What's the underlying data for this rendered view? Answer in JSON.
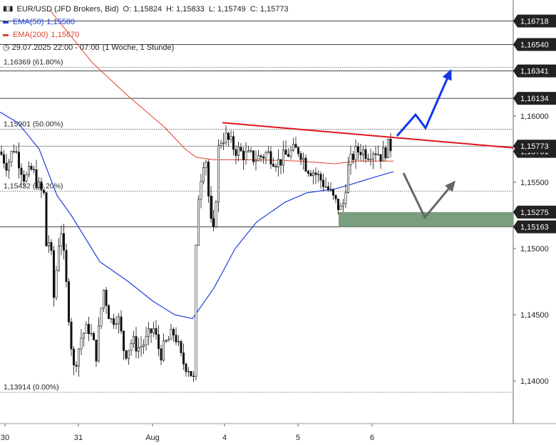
{
  "header": {
    "symbol": "EUR/USD (JFD Brokers, Bid)",
    "open": "O: 1,15824",
    "high": "H: 1,15833",
    "low": "L: 1,15749",
    "close": "C: 1,15773",
    "ema50_label": "EMA(50)",
    "ema50_value": "1,15580",
    "ema200_label": "EMA(200)",
    "ema200_value": "1,15670",
    "range": "29.07.2025 22:00 - 07:00",
    "period": "(1 Woche, 1 Stunde)"
  },
  "colors": {
    "ema50": "#1f3fe0",
    "ema200": "#e0402a",
    "trendline": "#e0161c",
    "bull_arrow": "#1336e8",
    "bear_arrow": "#666666",
    "zone": "#7a9e7e",
    "candle": "#111111"
  },
  "chart_data": {
    "type": "candlestick",
    "x_ticks": [
      "30",
      "31",
      "Aug",
      "4",
      "5",
      "6"
    ],
    "y_ticks": [
      "1,16000",
      "1,15500",
      "1,15000",
      "1,14500",
      "1,14000"
    ],
    "ylim": [
      1.136,
      1.1705
    ],
    "horizontal_levels": [
      {
        "value": 1.16718,
        "label": "1,16718",
        "style": "solid"
      },
      {
        "value": 1.1654,
        "label": "1,16540",
        "style": "solid"
      },
      {
        "value": 1.16341,
        "label": "1,16341",
        "style": "solid"
      },
      {
        "value": 1.16134,
        "label": "1,16134",
        "style": "solid"
      },
      {
        "value": 1.15163,
        "label": "1,15163",
        "style": "solid"
      },
      {
        "value": 1.15275,
        "label": "1,15275",
        "style": "zone"
      }
    ],
    "fibonacci": [
      {
        "value": 1.16369,
        "label": "1,16369 (61.80%)"
      },
      {
        "value": 1.15901,
        "label": "1,15901 (50.00%)"
      },
      {
        "value": 1.15432,
        "label": "1,15432 (38.20%)"
      },
      {
        "value": 1.13914,
        "label": "1,13914 (0.00%)"
      }
    ],
    "current_price": {
      "value": 1.15773,
      "label": "1,15773"
    },
    "hidden_price_label": "1,15781",
    "ohlc_path": [
      [
        0,
        1.1573
      ],
      [
        10,
        1.1563
      ],
      [
        20,
        1.1577
      ],
      [
        35,
        1.1552
      ],
      [
        45,
        1.156
      ],
      [
        55,
        1.1545
      ],
      [
        62,
        1.154
      ],
      [
        66,
        1.149
      ],
      [
        70,
        1.1515
      ],
      [
        75,
        1.146
      ],
      [
        85,
        1.152
      ],
      [
        95,
        1.146
      ],
      [
        103,
        1.1408
      ],
      [
        115,
        1.1435
      ],
      [
        125,
        1.144
      ],
      [
        135,
        1.142
      ],
      [
        145,
        1.147
      ],
      [
        155,
        1.1445
      ],
      [
        165,
        1.145
      ],
      [
        175,
        1.142
      ],
      [
        185,
        1.143
      ],
      [
        195,
        1.1425
      ],
      [
        205,
        1.143
      ],
      [
        215,
        1.144
      ],
      [
        225,
        1.142
      ],
      [
        235,
        1.143
      ],
      [
        245,
        1.1437
      ],
      [
        255,
        1.1415
      ],
      [
        265,
        1.141
      ],
      [
        272,
        1.14
      ],
      [
        276,
        1.153
      ],
      [
        282,
        1.1555
      ],
      [
        288,
        1.1575
      ],
      [
        295,
        1.152
      ],
      [
        300,
        1.151
      ],
      [
        307,
        1.158
      ],
      [
        315,
        1.1585
      ],
      [
        330,
        1.1575
      ],
      [
        345,
        1.157
      ],
      [
        360,
        1.1568
      ],
      [
        375,
        1.1572
      ],
      [
        390,
        1.1565
      ],
      [
        405,
        1.1572
      ],
      [
        420,
        1.1575
      ],
      [
        430,
        1.1562
      ],
      [
        440,
        1.1558
      ],
      [
        450,
        1.1552
      ],
      [
        460,
        1.1545
      ],
      [
        470,
        1.1535
      ],
      [
        480,
        1.1528
      ],
      [
        488,
        1.156
      ],
      [
        495,
        1.157
      ],
      [
        505,
        1.1575
      ],
      [
        515,
        1.1572
      ],
      [
        525,
        1.1575
      ],
      [
        535,
        1.157
      ],
      [
        545,
        1.1577
      ],
      [
        550,
        1.1577
      ]
    ],
    "ema50": [
      [
        0,
        1.1603
      ],
      [
        25,
        1.1595
      ],
      [
        55,
        1.1575
      ],
      [
        80,
        1.154
      ],
      [
        100,
        1.1525
      ],
      [
        140,
        1.149
      ],
      [
        180,
        1.1475
      ],
      [
        215,
        1.146
      ],
      [
        245,
        1.145
      ],
      [
        270,
        1.1447
      ],
      [
        300,
        1.147
      ],
      [
        330,
        1.15
      ],
      [
        360,
        1.152
      ],
      [
        400,
        1.1535
      ],
      [
        430,
        1.1542
      ],
      [
        470,
        1.1545
      ],
      [
        490,
        1.1548
      ],
      [
        520,
        1.1553
      ],
      [
        552,
        1.1558
      ]
    ],
    "ema200": [
      [
        70,
        1.168
      ],
      [
        130,
        1.164
      ],
      [
        180,
        1.1615
      ],
      [
        230,
        1.1592
      ],
      [
        260,
        1.1575
      ],
      [
        275,
        1.1569
      ],
      [
        300,
        1.1567
      ],
      [
        360,
        1.1567
      ],
      [
        420,
        1.1566
      ],
      [
        470,
        1.1564
      ],
      [
        500,
        1.1566
      ],
      [
        552,
        1.1566
      ]
    ],
    "trendline": [
      [
        312,
        1.1595
      ],
      [
        720,
        1.1576
      ]
    ],
    "range_box": {
      "x1": 298,
      "x2": 475,
      "low": 1.15163
    },
    "zone_box": {
      "x1": 475,
      "x2": 720,
      "low": 1.15163,
      "high": 1.15275
    },
    "bull_scenario": [
      [
        557,
        1.1585
      ],
      [
        583,
        1.1601
      ],
      [
        597,
        1.1591
      ],
      [
        632,
        1.1634
      ]
    ],
    "bear_scenario": [
      [
        566,
        1.1557
      ],
      [
        596,
        1.15235
      ],
      [
        637,
        1.155
      ]
    ]
  }
}
